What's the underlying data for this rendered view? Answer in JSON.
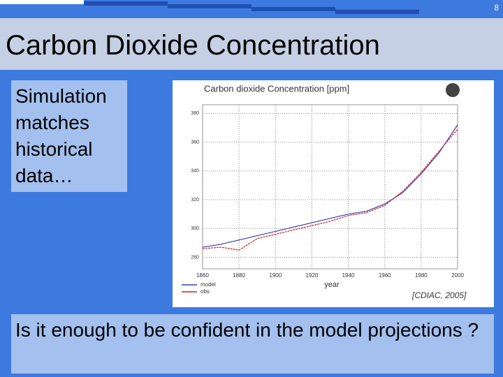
{
  "slide": {
    "number": "8",
    "title": "Carbon Dioxide Concentration",
    "left_box": "Simulation matches historical data…",
    "caption": "[CDIAC, 2005]",
    "bottom_box": "Is it enough to be confident in the model projections ?"
  },
  "chart_data": {
    "type": "line",
    "title": "Carbon dioxide Concentration [ppm]",
    "x_label": "year",
    "x": [
      1860,
      1870,
      1880,
      1890,
      1900,
      1910,
      1920,
      1930,
      1940,
      1950,
      1960,
      1970,
      1980,
      1990,
      2000
    ],
    "series": [
      {
        "name": "model",
        "color": "#3040b0",
        "values": [
          287,
          289,
          292,
          295,
          298,
          301,
          304,
          307,
          310,
          312,
          317,
          325,
          338,
          353,
          372
        ]
      },
      {
        "name": "obs",
        "color": "#d02020",
        "values": [
          286,
          287,
          285,
          293,
          296,
          299,
          302,
          305,
          309,
          311,
          316,
          326,
          339,
          354,
          369
        ]
      }
    ],
    "xlim": [
      1860,
      2000
    ],
    "xticks": [
      1860,
      1880,
      1900,
      1920,
      1940,
      1960,
      1980,
      2000
    ],
    "ylim": [
      272,
      386
    ],
    "yticks": [
      280,
      300,
      320,
      340,
      360,
      380
    ],
    "grid": true
  }
}
